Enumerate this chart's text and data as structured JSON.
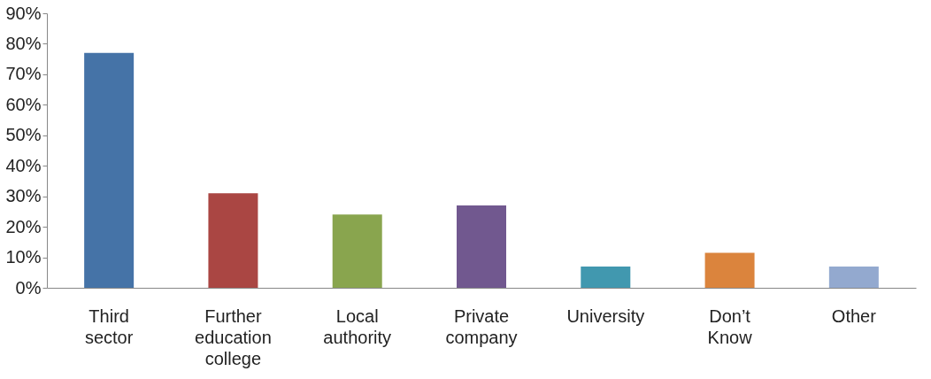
{
  "chart_data": {
    "type": "bar",
    "categories": [
      "Third sector",
      "Further education college",
      "Local authority",
      "Private company",
      "University",
      "Don’t Know",
      "Other"
    ],
    "values": [
      77,
      31,
      24,
      27,
      7,
      11.5,
      7
    ],
    "colors": [
      "#4573a7",
      "#aa4643",
      "#89a54e",
      "#71588f",
      "#4198af",
      "#db843d",
      "#93a9cf"
    ],
    "ylim": [
      0,
      90
    ],
    "yticks": [
      {
        "value": 0,
        "label": "0%"
      },
      {
        "value": 10,
        "label": "10%"
      },
      {
        "value": 20,
        "label": "20%"
      },
      {
        "value": 30,
        "label": "30%"
      },
      {
        "value": 40,
        "label": "40%"
      },
      {
        "value": 50,
        "label": "50%"
      },
      {
        "value": 60,
        "label": "60%"
      },
      {
        "value": 70,
        "label": "70%"
      },
      {
        "value": 80,
        "label": "80%"
      },
      {
        "value": 90,
        "label": "90%"
      }
    ],
    "grid": false
  }
}
